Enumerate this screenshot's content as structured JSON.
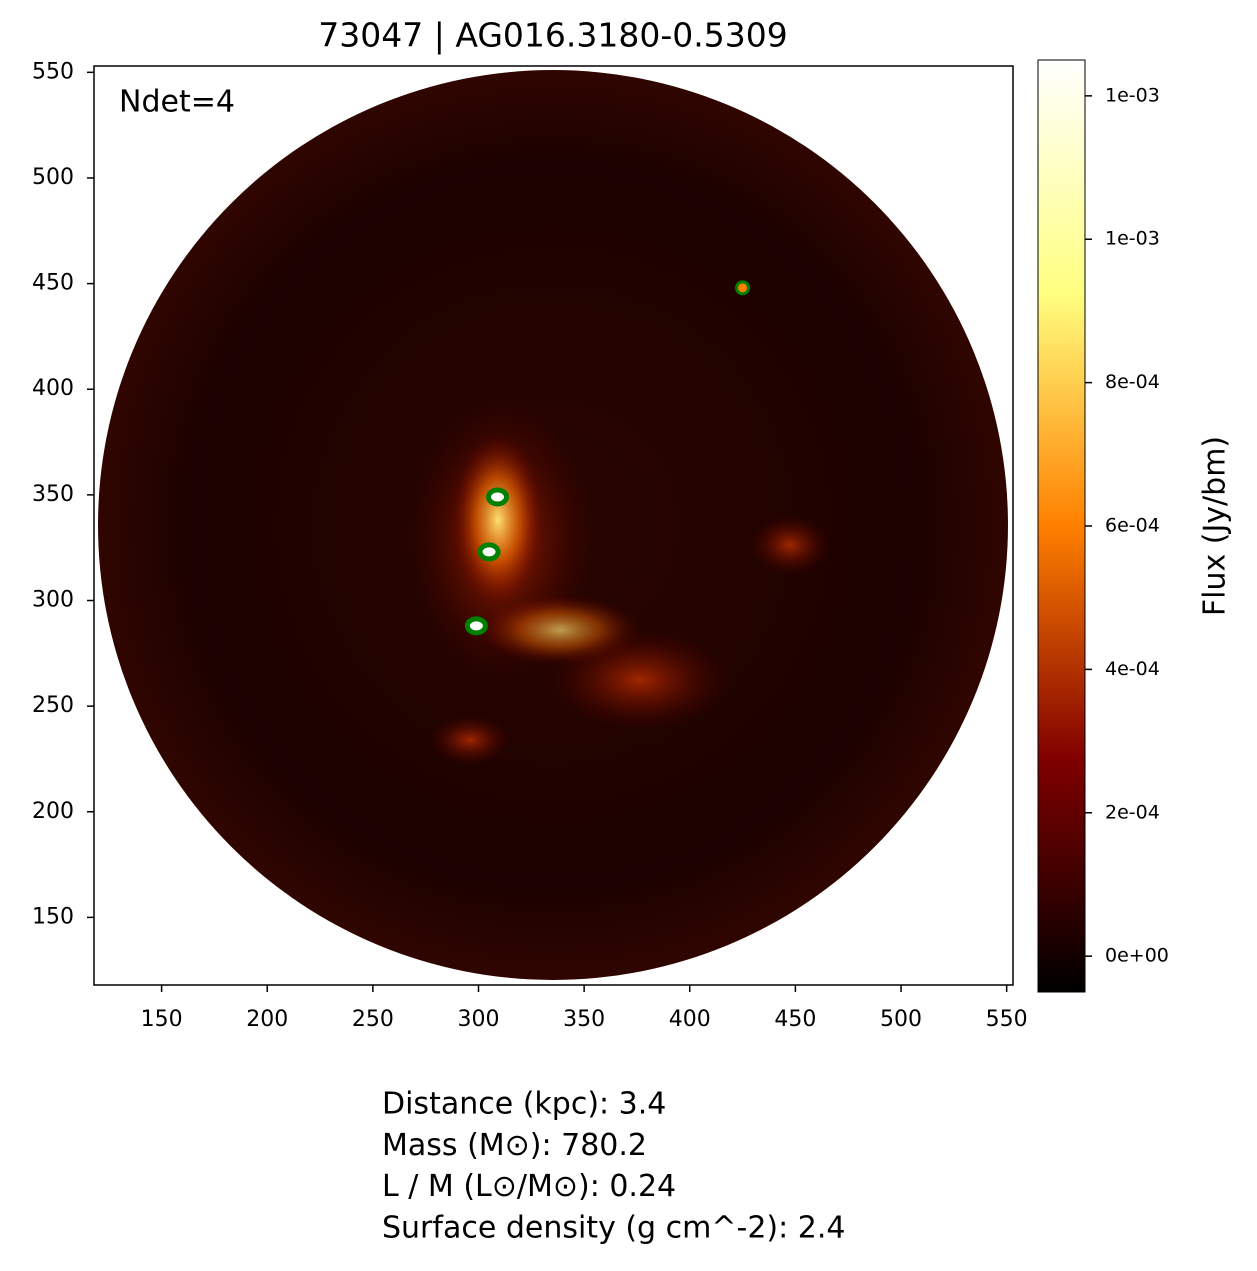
{
  "chart_data": {
    "type": "image",
    "title": "73047 | AG016.3180-0.5309",
    "annotation": "Ndet=4",
    "xlim": [
      118,
      553
    ],
    "ylim": [
      118,
      553
    ],
    "xticks": [
      150,
      200,
      250,
      300,
      350,
      400,
      450,
      500,
      550
    ],
    "yticks": [
      150,
      200,
      250,
      300,
      350,
      400,
      450,
      500,
      550
    ],
    "colormap": "afmhot",
    "detections": {
      "color": "#008000",
      "x": [
        425,
        309,
        305,
        299
      ],
      "y": [
        448,
        349,
        323,
        288
      ]
    },
    "colorbar": {
      "label": "Flux (Jy/bm)",
      "lim": [
        -5e-05,
        0.00125
      ],
      "ticks": [
        {
          "value": 0,
          "label": "0e+00"
        },
        {
          "value": 0.0002,
          "label": "2e-04"
        },
        {
          "value": 0.0004,
          "label": "4e-04"
        },
        {
          "value": 0.0006,
          "label": "6e-04"
        },
        {
          "value": 0.0008,
          "label": "8e-04"
        },
        {
          "value": 0.001,
          "label": "1e-03"
        },
        {
          "value": 0.0012,
          "label": "1e-03"
        }
      ]
    },
    "info": [
      "Distance (kpc): 3.4",
      "Mass (M⊙): 780.2",
      "L / M (L⊙/M⊙): 0.24",
      "Surface density (g cm^-2): 2.4"
    ]
  }
}
